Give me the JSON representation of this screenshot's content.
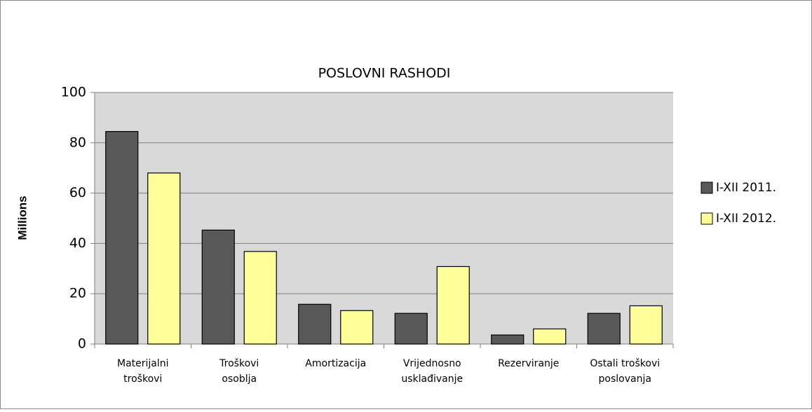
{
  "chart_data": {
    "type": "bar",
    "title": "POSLOVNI RASHODI",
    "y_label": "Millions",
    "categories": [
      [
        "Materijalni",
        "troškovi"
      ],
      [
        "Troškovi",
        "osoblja"
      ],
      [
        "Amortizacija"
      ],
      [
        "Vrijednosno",
        "usklađivanje"
      ],
      [
        "Rezerviranje"
      ],
      [
        "Ostali troškovi",
        "poslovanja"
      ]
    ],
    "series": [
      {
        "name": "I-XII 2011.",
        "color": "#595959",
        "values": [
          84.5,
          45.3,
          15.8,
          12.2,
          3.6,
          12.2
        ]
      },
      {
        "name": "I-XII 2012.",
        "color": "#ffff99",
        "values": [
          68.0,
          36.8,
          13.3,
          30.8,
          6.0,
          15.2
        ]
      }
    ],
    "ylim": [
      0,
      100
    ],
    "yticks": [
      0,
      20,
      40,
      60,
      80,
      100
    ],
    "grid": true,
    "legend": "right"
  }
}
